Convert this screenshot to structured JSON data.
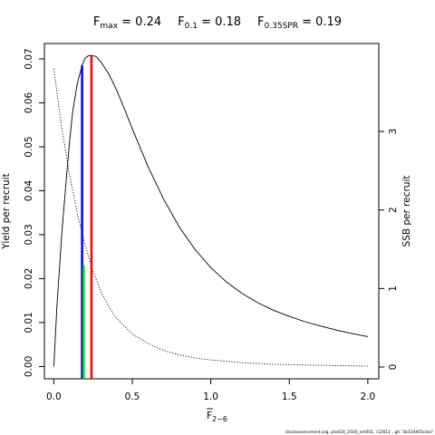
{
  "title": {
    "parts": [
      {
        "main": "F",
        "sub": "max",
        "rest": " = 0.24"
      },
      {
        "main": "F",
        "sub": "0.1",
        "rest": " = 0.18"
      },
      {
        "main": "F",
        "sub": "0.35SPR",
        "rest": " = 0.19"
      }
    ]
  },
  "footer": "stockassessment.org, ple420_2020_sm001, r12612 , git: 5b334405cda7",
  "chart_data": {
    "type": "line",
    "xlabel": {
      "main": "F",
      "sub": "2−6"
    },
    "ylabel_left": "Yield per recruit",
    "ylabel_right": "SSB per recruit",
    "xlim": [
      -0.06,
      2.07
    ],
    "ylim_left": [
      -0.0028,
      0.0735
    ],
    "ylim_right": [
      -0.15,
      4.12
    ],
    "x_ticks": [
      0,
      0.5,
      1,
      1.5,
      2
    ],
    "x_tick_labels": [
      "0.0",
      "0.5",
      "1.0",
      "1.5",
      "2.0"
    ],
    "y_left_ticks": [
      0,
      0.01,
      0.02,
      0.03,
      0.04,
      0.05,
      0.06,
      0.07
    ],
    "y_left_tick_labels": [
      "0.00",
      "0.01",
      "0.02",
      "0.03",
      "0.04",
      "0.05",
      "0.06",
      "0.07"
    ],
    "y_right_ticks": [
      0,
      1,
      2,
      3
    ],
    "y_right_tick_labels": [
      "0",
      "1",
      "2",
      "3"
    ],
    "series": [
      {
        "style": "solid",
        "axis": "left",
        "x": [
          0,
          0.02,
          0.05,
          0.08,
          0.1,
          0.12,
          0.15,
          0.18,
          0.2,
          0.22,
          0.24,
          0.27,
          0.3,
          0.35,
          0.4,
          0.45,
          0.5,
          0.6,
          0.7,
          0.8,
          0.9,
          1.0,
          1.1,
          1.2,
          1.3,
          1.4,
          1.5,
          1.6,
          1.7,
          1.8,
          1.9,
          2.0
        ],
        "values": [
          0,
          0.014,
          0.03,
          0.043,
          0.051,
          0.058,
          0.0645,
          0.0685,
          0.0702,
          0.0707,
          0.0708,
          0.0705,
          0.0693,
          0.0666,
          0.0629,
          0.0586,
          0.0541,
          0.0455,
          0.038,
          0.0317,
          0.0266,
          0.0225,
          0.0192,
          0.0166,
          0.0145,
          0.0128,
          0.0114,
          0.0102,
          0.0092,
          0.0083,
          0.0075,
          0.0068
        ]
      },
      {
        "style": "dotted",
        "axis": "right",
        "x": [
          0,
          0.05,
          0.1,
          0.15,
          0.2,
          0.25,
          0.3,
          0.35,
          0.4,
          0.5,
          0.6,
          0.7,
          0.8,
          0.9,
          1.0,
          1.2,
          1.4,
          1.6,
          1.8,
          2.0
        ],
        "values": [
          3.8,
          3.05,
          2.45,
          1.95,
          1.55,
          1.22,
          0.96,
          0.77,
          0.62,
          0.42,
          0.3,
          0.21,
          0.155,
          0.115,
          0.09,
          0.055,
          0.035,
          0.025,
          0.018,
          0.012
        ]
      }
    ],
    "reference_lines": [
      {
        "color": "#0000ff",
        "x": 0.18,
        "axis": "left",
        "top": 0.0685
      },
      {
        "color": "#00dd00",
        "x": 0.19,
        "axis": "right",
        "top": 1.3
      },
      {
        "color": "#ff0000",
        "x": 0.24,
        "axis": "left",
        "top": 0.0708
      }
    ]
  }
}
